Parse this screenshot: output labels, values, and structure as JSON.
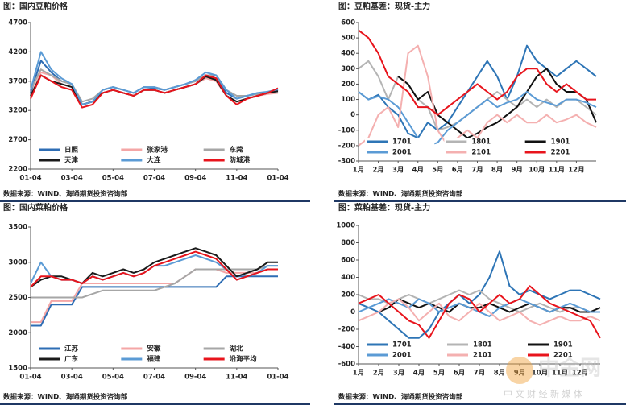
{
  "chart_data": [
    {
      "type": "line",
      "title": "图：国内豆粕价格",
      "source": "数据来源：WIND、海通期货投资咨询部",
      "x": [
        0,
        0.5,
        1,
        1.5,
        2,
        2.5,
        3,
        3.5,
        4,
        4.5,
        5,
        5.5,
        6,
        6.5,
        7,
        7.5,
        8,
        8.5,
        9,
        9.5,
        10,
        10.5,
        11,
        11.5,
        12
      ],
      "xlim": [
        0,
        12
      ],
      "xticks": [
        {
          "value": 0,
          "label": "01-04"
        },
        {
          "value": 2,
          "label": "03-04"
        },
        {
          "value": 4,
          "label": "05-04"
        },
        {
          "value": 6,
          "label": "07-04"
        },
        {
          "value": 8,
          "label": "09-04"
        },
        {
          "value": 10,
          "label": "11-04"
        },
        {
          "value": 12,
          "label": "01-04"
        }
      ],
      "ylim": [
        2200,
        4700
      ],
      "yticks": [
        2200,
        2700,
        3200,
        3700,
        4200,
        4700
      ],
      "grid": false,
      "legend": "bottom",
      "series": [
        {
          "name": "日照",
          "color": "#2e6db4",
          "values": [
            3500,
            4050,
            3850,
            3700,
            3650,
            3300,
            3350,
            3550,
            3600,
            3550,
            3500,
            3600,
            3580,
            3550,
            3600,
            3650,
            3700,
            3800,
            3750,
            3500,
            3400,
            3450,
            3480,
            3500,
            3550
          ]
        },
        {
          "name": "张家港",
          "color": "#f4a6a6",
          "values": [
            3450,
            3850,
            3800,
            3650,
            3600,
            3300,
            3350,
            3500,
            3550,
            3500,
            3450,
            3550,
            3550,
            3500,
            3550,
            3600,
            3650,
            3750,
            3700,
            3450,
            3350,
            3400,
            3450,
            3480,
            3500
          ]
        },
        {
          "name": "东莞",
          "color": "#a6a6a6",
          "values": [
            3550,
            3900,
            3800,
            3700,
            3650,
            3350,
            3400,
            3550,
            3600,
            3550,
            3500,
            3600,
            3600,
            3550,
            3600,
            3650,
            3700,
            3800,
            3800,
            3550,
            3450,
            3450,
            3480,
            3500,
            3520
          ]
        },
        {
          "name": "天津",
          "color": "#1a1a1a",
          "values": [
            3450,
            3800,
            3700,
            3650,
            3600,
            3300,
            3350,
            3500,
            3550,
            3500,
            3450,
            3550,
            3550,
            3500,
            3550,
            3600,
            3650,
            3780,
            3720,
            3450,
            3350,
            3400,
            3450,
            3500,
            3530
          ]
        },
        {
          "name": "大连",
          "color": "#5b9bd5",
          "values": [
            3550,
            4200,
            3900,
            3750,
            3650,
            3300,
            3350,
            3550,
            3600,
            3550,
            3500,
            3600,
            3600,
            3550,
            3600,
            3650,
            3720,
            3850,
            3800,
            3550,
            3400,
            3450,
            3500,
            3520,
            3560
          ]
        },
        {
          "name": "防城港",
          "color": "#e8141c",
          "values": [
            3400,
            3800,
            3700,
            3600,
            3550,
            3250,
            3300,
            3500,
            3550,
            3500,
            3450,
            3550,
            3550,
            3500,
            3550,
            3600,
            3650,
            3800,
            3750,
            3450,
            3300,
            3400,
            3450,
            3500,
            3580
          ]
        }
      ]
    },
    {
      "type": "line",
      "title": "图：豆粕基差：现货-主力",
      "source": "数据来源：WIND、海通期货投资咨询部",
      "x": [
        0,
        0.5,
        1,
        1.5,
        2,
        2.5,
        3,
        3.5,
        4,
        4.5,
        5,
        5.5,
        6,
        6.5,
        7,
        7.5,
        8,
        8.5,
        9,
        9.5,
        10,
        10.5,
        11,
        11.5,
        12
      ],
      "xlim": [
        0,
        12
      ],
      "xticks": [
        {
          "value": 0,
          "label": "1月"
        },
        {
          "value": 1,
          "label": "2月"
        },
        {
          "value": 2,
          "label": "3月"
        },
        {
          "value": 3,
          "label": "4月"
        },
        {
          "value": 4,
          "label": "5月"
        },
        {
          "value": 5,
          "label": "6月"
        },
        {
          "value": 6,
          "label": "7月"
        },
        {
          "value": 7,
          "label": "8月"
        },
        {
          "value": 8,
          "label": "9月"
        },
        {
          "value": 9,
          "label": "10月"
        },
        {
          "value": 10,
          "label": "11月"
        },
        {
          "value": 11,
          "label": "12月"
        }
      ],
      "ylim": [
        -300,
        600
      ],
      "yticks": [
        -300,
        -200,
        -100,
        0,
        100,
        200,
        300,
        400,
        500,
        600
      ],
      "grid": false,
      "legend": "bottom",
      "series": [
        {
          "name": "1701",
          "color": "#2e75b6",
          "values": [
            150,
            100,
            130,
            50,
            0,
            -120,
            -150,
            -50,
            -100,
            -50,
            50,
            150,
            250,
            350,
            250,
            100,
            250,
            450,
            350,
            300,
            250,
            300,
            350,
            300,
            250
          ]
        },
        {
          "name": "1801",
          "color": "#b4b4b4",
          "values": [
            300,
            350,
            250,
            100,
            250,
            200,
            100,
            50,
            -100,
            -80,
            -50,
            0,
            50,
            100,
            150,
            100,
            50,
            100,
            50,
            100,
            50,
            100,
            100,
            50,
            0
          ]
        },
        {
          "name": "1901",
          "color": "#111111",
          "values": [
            null,
            null,
            null,
            null,
            250,
            200,
            100,
            150,
            0,
            -50,
            -100,
            -150,
            -120,
            -80,
            -50,
            0,
            50,
            150,
            250,
            300,
            200,
            150,
            150,
            100,
            -50
          ]
        },
        {
          "name": "2001",
          "color": "#5b9bd5",
          "values": [
            150,
            100,
            120,
            100,
            50,
            -50,
            -150,
            -200,
            -180,
            -100,
            -50,
            0,
            50,
            100,
            50,
            80,
            100,
            150,
            100,
            80,
            60,
            100,
            100,
            80,
            50
          ]
        },
        {
          "name": "2101",
          "color": "#f4b0b0",
          "values": [
            -200,
            -150,
            0,
            50,
            -80,
            400,
            450,
            250,
            -100,
            -200,
            -150,
            -100,
            -150,
            -50,
            0,
            -50,
            0,
            -50,
            -50,
            0,
            -50,
            -30,
            0,
            -50,
            -80
          ]
        },
        {
          "name": "2201",
          "color": "#e8141c",
          "values": [
            550,
            500,
            400,
            250,
            200,
            150,
            50,
            50,
            0,
            50,
            100,
            150,
            200,
            150,
            100,
            150,
            250,
            300,
            300,
            200,
            150,
            200,
            150,
            100,
            100
          ]
        }
      ]
    },
    {
      "type": "line",
      "title": "图：国内菜粕价格",
      "source": "数据来源：WIND、海通期货投资咨询部",
      "x": [
        0,
        0.5,
        1,
        1.5,
        2,
        2.5,
        3,
        3.5,
        4,
        4.5,
        5,
        5.5,
        6,
        6.5,
        7,
        7.5,
        8,
        8.5,
        9,
        9.5,
        10,
        10.5,
        11,
        11.5,
        12
      ],
      "xlim": [
        0,
        12
      ],
      "xticks": [
        {
          "value": 0,
          "label": "01-04"
        },
        {
          "value": 2,
          "label": "03-04"
        },
        {
          "value": 4,
          "label": "05-04"
        },
        {
          "value": 6,
          "label": "07-04"
        },
        {
          "value": 8,
          "label": "09-04"
        },
        {
          "value": 10,
          "label": "11-04"
        },
        {
          "value": 12,
          "label": "01-04"
        }
      ],
      "ylim": [
        1500,
        3500
      ],
      "yticks": [
        1500,
        2000,
        2500,
        3000,
        3500
      ],
      "grid": false,
      "legend": "bottom",
      "series": [
        {
          "name": "江苏",
          "color": "#2e6db4",
          "values": [
            2100,
            2100,
            2400,
            2400,
            2400,
            2650,
            2650,
            2650,
            2650,
            2650,
            2650,
            2650,
            2650,
            2650,
            2650,
            2650,
            2650,
            2650,
            2650,
            2800,
            2800,
            2800,
            2800,
            2800,
            2800
          ]
        },
        {
          "name": "安徽",
          "color": "#f4a6a6",
          "values": [
            2150,
            2150,
            2450,
            2450,
            2450,
            2700,
            2700,
            2700,
            2700,
            2700,
            2700,
            2700,
            2700,
            2700,
            2700,
            2800,
            2900,
            2900,
            2900,
            2850,
            2850,
            2850,
            2850,
            2900,
            2900
          ]
        },
        {
          "name": "湖北",
          "color": "#a6a6a6",
          "values": [
            2500,
            2500,
            2500,
            2500,
            2500,
            2500,
            2550,
            2600,
            2600,
            2600,
            2600,
            2600,
            2600,
            2650,
            2700,
            2800,
            2900,
            2900,
            2900,
            2900,
            2900,
            2900,
            2900,
            2950,
            2950
          ]
        },
        {
          "name": "广东",
          "color": "#1a1a1a",
          "values": [
            2650,
            2750,
            2800,
            2800,
            2750,
            2700,
            2850,
            2800,
            2850,
            2900,
            2850,
            2900,
            3000,
            3050,
            3100,
            3150,
            3200,
            3150,
            3100,
            2950,
            2800,
            2850,
            2900,
            3000,
            3000
          ]
        },
        {
          "name": "福建",
          "color": "#5b9bd5",
          "values": [
            2700,
            3000,
            2800,
            2750,
            2750,
            2700,
            2800,
            2750,
            2800,
            2850,
            2800,
            2850,
            2950,
            2950,
            3000,
            3050,
            3100,
            3050,
            3000,
            2900,
            2750,
            2800,
            2850,
            2950,
            2950
          ]
        },
        {
          "name": "沿海平均",
          "color": "#e8141c",
          "values": [
            2650,
            2800,
            2800,
            2750,
            2750,
            2700,
            2800,
            2750,
            2800,
            2850,
            2800,
            2850,
            2950,
            3000,
            3050,
            3100,
            3150,
            3100,
            3050,
            2900,
            2750,
            2800,
            2850,
            2900,
            2900
          ]
        }
      ]
    },
    {
      "type": "line",
      "title": "图：菜粕基差：现货-主力",
      "source": "数据来源：WIND、海通期货投资咨询部",
      "x": [
        0,
        0.5,
        1,
        1.5,
        2,
        2.5,
        3,
        3.5,
        4,
        4.5,
        5,
        5.5,
        6,
        6.5,
        7,
        7.5,
        8,
        8.5,
        9,
        9.5,
        10,
        10.5,
        11,
        11.5,
        12
      ],
      "xlim": [
        0,
        12
      ],
      "xticks": [
        {
          "value": 0,
          "label": "1月"
        },
        {
          "value": 1,
          "label": "2月"
        },
        {
          "value": 2,
          "label": "3月"
        },
        {
          "value": 3,
          "label": "4月"
        },
        {
          "value": 4,
          "label": "5月"
        },
        {
          "value": 5,
          "label": "6月"
        },
        {
          "value": 6,
          "label": "7月"
        },
        {
          "value": 7,
          "label": "8月"
        },
        {
          "value": 8,
          "label": "9月"
        },
        {
          "value": 9,
          "label": "10月"
        },
        {
          "value": 10,
          "label": "11月"
        },
        {
          "value": 11,
          "label": "12月"
        }
      ],
      "ylim": [
        -600,
        1000
      ],
      "yticks": [
        -600,
        -400,
        -200,
        0,
        200,
        400,
        600,
        800,
        1000
      ],
      "grid": false,
      "legend": "bottom",
      "series": [
        {
          "name": "1701",
          "color": "#2e75b6",
          "values": [
            100,
            50,
            0,
            -100,
            -200,
            -300,
            -300,
            -200,
            0,
            100,
            200,
            100,
            200,
            400,
            700,
            300,
            200,
            250,
            200,
            150,
            200,
            250,
            250,
            200,
            150
          ]
        },
        {
          "name": "1801",
          "color": "#b4b4b4",
          "values": [
            200,
            150,
            150,
            100,
            150,
            200,
            150,
            100,
            150,
            200,
            250,
            200,
            250,
            150,
            100,
            50,
            0,
            50,
            100,
            50,
            0,
            50,
            50,
            0,
            0
          ]
        },
        {
          "name": "1901",
          "color": "#111111",
          "values": [
            null,
            null,
            0,
            50,
            150,
            100,
            50,
            100,
            50,
            0,
            100,
            50,
            50,
            100,
            50,
            0,
            50,
            100,
            50,
            0,
            50,
            50,
            0,
            0,
            50
          ]
        },
        {
          "name": "2001",
          "color": "#5b9bd5",
          "values": [
            0,
            50,
            100,
            150,
            100,
            50,
            150,
            100,
            0,
            50,
            100,
            50,
            0,
            -50,
            50,
            100,
            150,
            100,
            50,
            0,
            50,
            100,
            50,
            0,
            0
          ]
        },
        {
          "name": "2101",
          "color": "#f4b0b0",
          "values": [
            -100,
            -50,
            0,
            100,
            150,
            50,
            -100,
            0,
            100,
            -50,
            -100,
            0,
            100,
            0,
            -100,
            -50,
            0,
            -100,
            -150,
            -100,
            -50,
            -100,
            -100,
            -50,
            -100
          ]
        },
        {
          "name": "2201",
          "color": "#e8141c",
          "values": [
            100,
            150,
            200,
            100,
            0,
            -100,
            -150,
            -300,
            -100,
            100,
            200,
            150,
            0,
            100,
            200,
            100,
            150,
            300,
            200,
            100,
            50,
            0,
            -50,
            -100,
            -300
          ]
        }
      ]
    }
  ],
  "watermark": {
    "logo": "中金网",
    "tagline": "中 文 财 经 新 媒 体"
  }
}
